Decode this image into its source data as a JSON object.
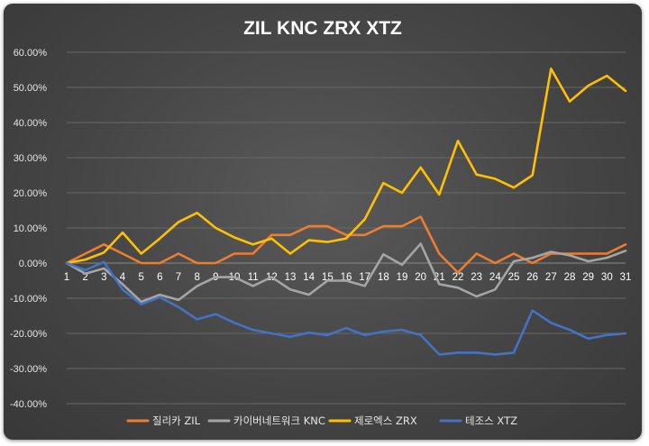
{
  "chart_data": {
    "type": "line",
    "title": "ZIL KNC ZRX XTZ",
    "xlabel": "",
    "ylabel": "",
    "x": [
      1,
      2,
      3,
      4,
      5,
      6,
      7,
      8,
      9,
      10,
      11,
      12,
      13,
      14,
      15,
      16,
      17,
      18,
      19,
      20,
      21,
      22,
      23,
      24,
      25,
      26,
      27,
      28,
      29,
      30,
      31
    ],
    "ylim": [
      -0.4,
      0.6
    ],
    "ytick_step": 0.1,
    "ytick_labels": [
      "60.00%",
      "50.00%",
      "40.00%",
      "30.00%",
      "20.00%",
      "10.00%",
      "0.00%",
      "-10.00%",
      "-20.00%",
      "-30.00%",
      "-40.00%"
    ],
    "grid": true,
    "legend_position": "bottom",
    "series": [
      {
        "name": "질리카 ZIL",
        "color": "#ED7D31",
        "values": [
          0,
          0.027,
          0.053,
          0.027,
          0,
          0,
          0.027,
          0,
          0,
          0.027,
          0.027,
          0.08,
          0.08,
          0.105,
          0.105,
          0.08,
          0.08,
          0.105,
          0.105,
          0.132,
          0.027,
          -0.027,
          0.027,
          0,
          0.027,
          0,
          0.027,
          0.027,
          0.027,
          0.027,
          0.053
        ]
      },
      {
        "name": "카이버네트워크 KNC",
        "color": "#A5A5A5",
        "values": [
          0,
          -0.03,
          -0.015,
          -0.06,
          -0.11,
          -0.09,
          -0.105,
          -0.065,
          -0.04,
          -0.04,
          -0.065,
          -0.04,
          -0.075,
          -0.09,
          -0.05,
          -0.05,
          -0.065,
          0.025,
          -0.005,
          0.055,
          -0.06,
          -0.07,
          -0.095,
          -0.075,
          0.005,
          0.015,
          0.032,
          0.022,
          0.005,
          0.015,
          0.035
        ]
      },
      {
        "name": "제로엑스 ZRX",
        "color": "#FFC000",
        "values": [
          0,
          0.01,
          0.03,
          0.087,
          0.027,
          0.07,
          0.117,
          0.143,
          0.1,
          0.073,
          0.053,
          0.07,
          0.027,
          0.065,
          0.06,
          0.07,
          0.125,
          0.228,
          0.2,
          0.272,
          0.195,
          0.348,
          0.252,
          0.24,
          0.215,
          0.25,
          0.553,
          0.46,
          0.505,
          0.533,
          0.49
        ]
      },
      {
        "name": "테조스 XTZ",
        "color": "#4472C4",
        "values": [
          0,
          -0.02,
          0.003,
          -0.075,
          -0.117,
          -0.097,
          -0.125,
          -0.16,
          -0.145,
          -0.17,
          -0.19,
          -0.2,
          -0.21,
          -0.198,
          -0.205,
          -0.185,
          -0.205,
          -0.195,
          -0.19,
          -0.205,
          -0.26,
          -0.255,
          -0.255,
          -0.26,
          -0.255,
          -0.135,
          -0.17,
          -0.19,
          -0.215,
          -0.205,
          -0.2
        ]
      }
    ]
  }
}
